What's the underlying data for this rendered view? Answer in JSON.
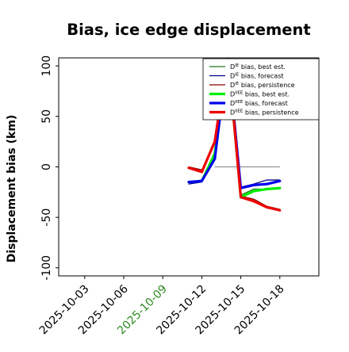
{
  "chart_data": {
    "type": "line",
    "title": "Bias, ice edge displacement",
    "xlabel": "",
    "ylabel": "Displacement bias (km)",
    "ylim": [
      -108,
      108
    ],
    "yticks": [
      -100,
      -50,
      0,
      50,
      100
    ],
    "xlim": [
      "2025-10-01",
      "2025-10-21"
    ],
    "xticks": [
      {
        "date": "2025-10-03",
        "label": "2025-10-03",
        "color": "#000000"
      },
      {
        "date": "2025-10-06",
        "label": "2025-10-06",
        "color": "#000000"
      },
      {
        "date": "2025-10-09",
        "label": "2025-10-09",
        "color": "#2e8b22"
      },
      {
        "date": "2025-10-12",
        "label": "2025-10-12",
        "color": "#000000"
      },
      {
        "date": "2025-10-15",
        "label": "2025-10-15",
        "color": "#000000"
      },
      {
        "date": "2025-10-18",
        "label": "2025-10-18",
        "color": "#000000"
      }
    ],
    "zero_line": {
      "from": "2025-10-13",
      "to": "2025-10-18",
      "value": 0
    },
    "grid": false,
    "legend_position": "top-right",
    "series": [
      {
        "name": "D^IE bias, best est.",
        "color": "#1f7a1f",
        "width": 1.3,
        "points": [
          [
            "2025-10-11",
            -15
          ],
          [
            "2025-10-12",
            -13
          ],
          [
            "2025-10-13",
            15
          ],
          [
            "2025-10-14",
            112
          ],
          [
            "2025-10-15",
            -28
          ],
          [
            "2025-10-16",
            -22
          ],
          [
            "2025-10-17",
            -22
          ],
          [
            "2025-10-18",
            -21
          ]
        ]
      },
      {
        "name": "D^IE bias, forecast",
        "color": "#00008b",
        "width": 1.3,
        "points": [
          [
            "2025-10-11",
            -17
          ],
          [
            "2025-10-12",
            -15
          ],
          [
            "2025-10-13",
            10
          ],
          [
            "2025-10-14",
            112
          ],
          [
            "2025-10-15",
            -20
          ],
          [
            "2025-10-16",
            -17
          ],
          [
            "2025-10-17",
            -13
          ],
          [
            "2025-10-18",
            -13
          ]
        ]
      },
      {
        "name": "D^IE bias, persistence",
        "color": "#8b0000",
        "width": 1.3,
        "points": [
          [
            "2025-10-11",
            0
          ],
          [
            "2025-10-12",
            -3
          ],
          [
            "2025-10-13",
            25
          ],
          [
            "2025-10-14",
            112
          ],
          [
            "2025-10-15",
            -29
          ],
          [
            "2025-10-16",
            -32
          ],
          [
            "2025-10-17",
            -39
          ],
          [
            "2025-10-18",
            -42
          ]
        ]
      },
      {
        "name": "D^IIEE bias, best est.",
        "color": "#00ee00",
        "width": 3.2,
        "points": [
          [
            "2025-10-11",
            -15
          ],
          [
            "2025-10-12",
            -14
          ],
          [
            "2025-10-13",
            13
          ],
          [
            "2025-10-14",
            112
          ],
          [
            "2025-10-15",
            -30
          ],
          [
            "2025-10-16",
            -24
          ],
          [
            "2025-10-17",
            -22
          ],
          [
            "2025-10-18",
            -21
          ]
        ]
      },
      {
        "name": "D^IIEE bias, forecast",
        "color": "#0000ee",
        "width": 3.2,
        "points": [
          [
            "2025-10-11",
            -15
          ],
          [
            "2025-10-12",
            -14
          ],
          [
            "2025-10-13",
            8
          ],
          [
            "2025-10-14",
            112
          ],
          [
            "2025-10-15",
            -21
          ],
          [
            "2025-10-16",
            -18
          ],
          [
            "2025-10-17",
            -17
          ],
          [
            "2025-10-18",
            -14
          ]
        ]
      },
      {
        "name": "D^IIEE bias, persistence",
        "color": "#ee0000",
        "width": 3.2,
        "points": [
          [
            "2025-10-11",
            -1
          ],
          [
            "2025-10-12",
            -5
          ],
          [
            "2025-10-13",
            25
          ],
          [
            "2025-10-14",
            112
          ],
          [
            "2025-10-15",
            -30
          ],
          [
            "2025-10-16",
            -34
          ],
          [
            "2025-10-17",
            -40
          ],
          [
            "2025-10-18",
            -43
          ]
        ]
      }
    ],
    "legend": [
      {
        "base": "D",
        "sup": "IE",
        "text": " bias, best est.",
        "color": "#1f7a1f",
        "width": 1.3
      },
      {
        "base": "D",
        "sup": "IE",
        "text": " bias, forecast",
        "color": "#00008b",
        "width": 1.3
      },
      {
        "base": "D",
        "sup": "IE",
        "text": " bias, persistence",
        "color": "#8b0000",
        "width": 1.3
      },
      {
        "base": "D",
        "sup": "IIEE",
        "text": " bias, best est.",
        "color": "#00ee00",
        "width": 3.2
      },
      {
        "base": "D",
        "sup": "IIEE",
        "text": " bias, forecast",
        "color": "#0000ee",
        "width": 3.2
      },
      {
        "base": "D",
        "sup": "IIEE",
        "text": " bias, persistence",
        "color": "#ee0000",
        "width": 3.2
      }
    ]
  }
}
